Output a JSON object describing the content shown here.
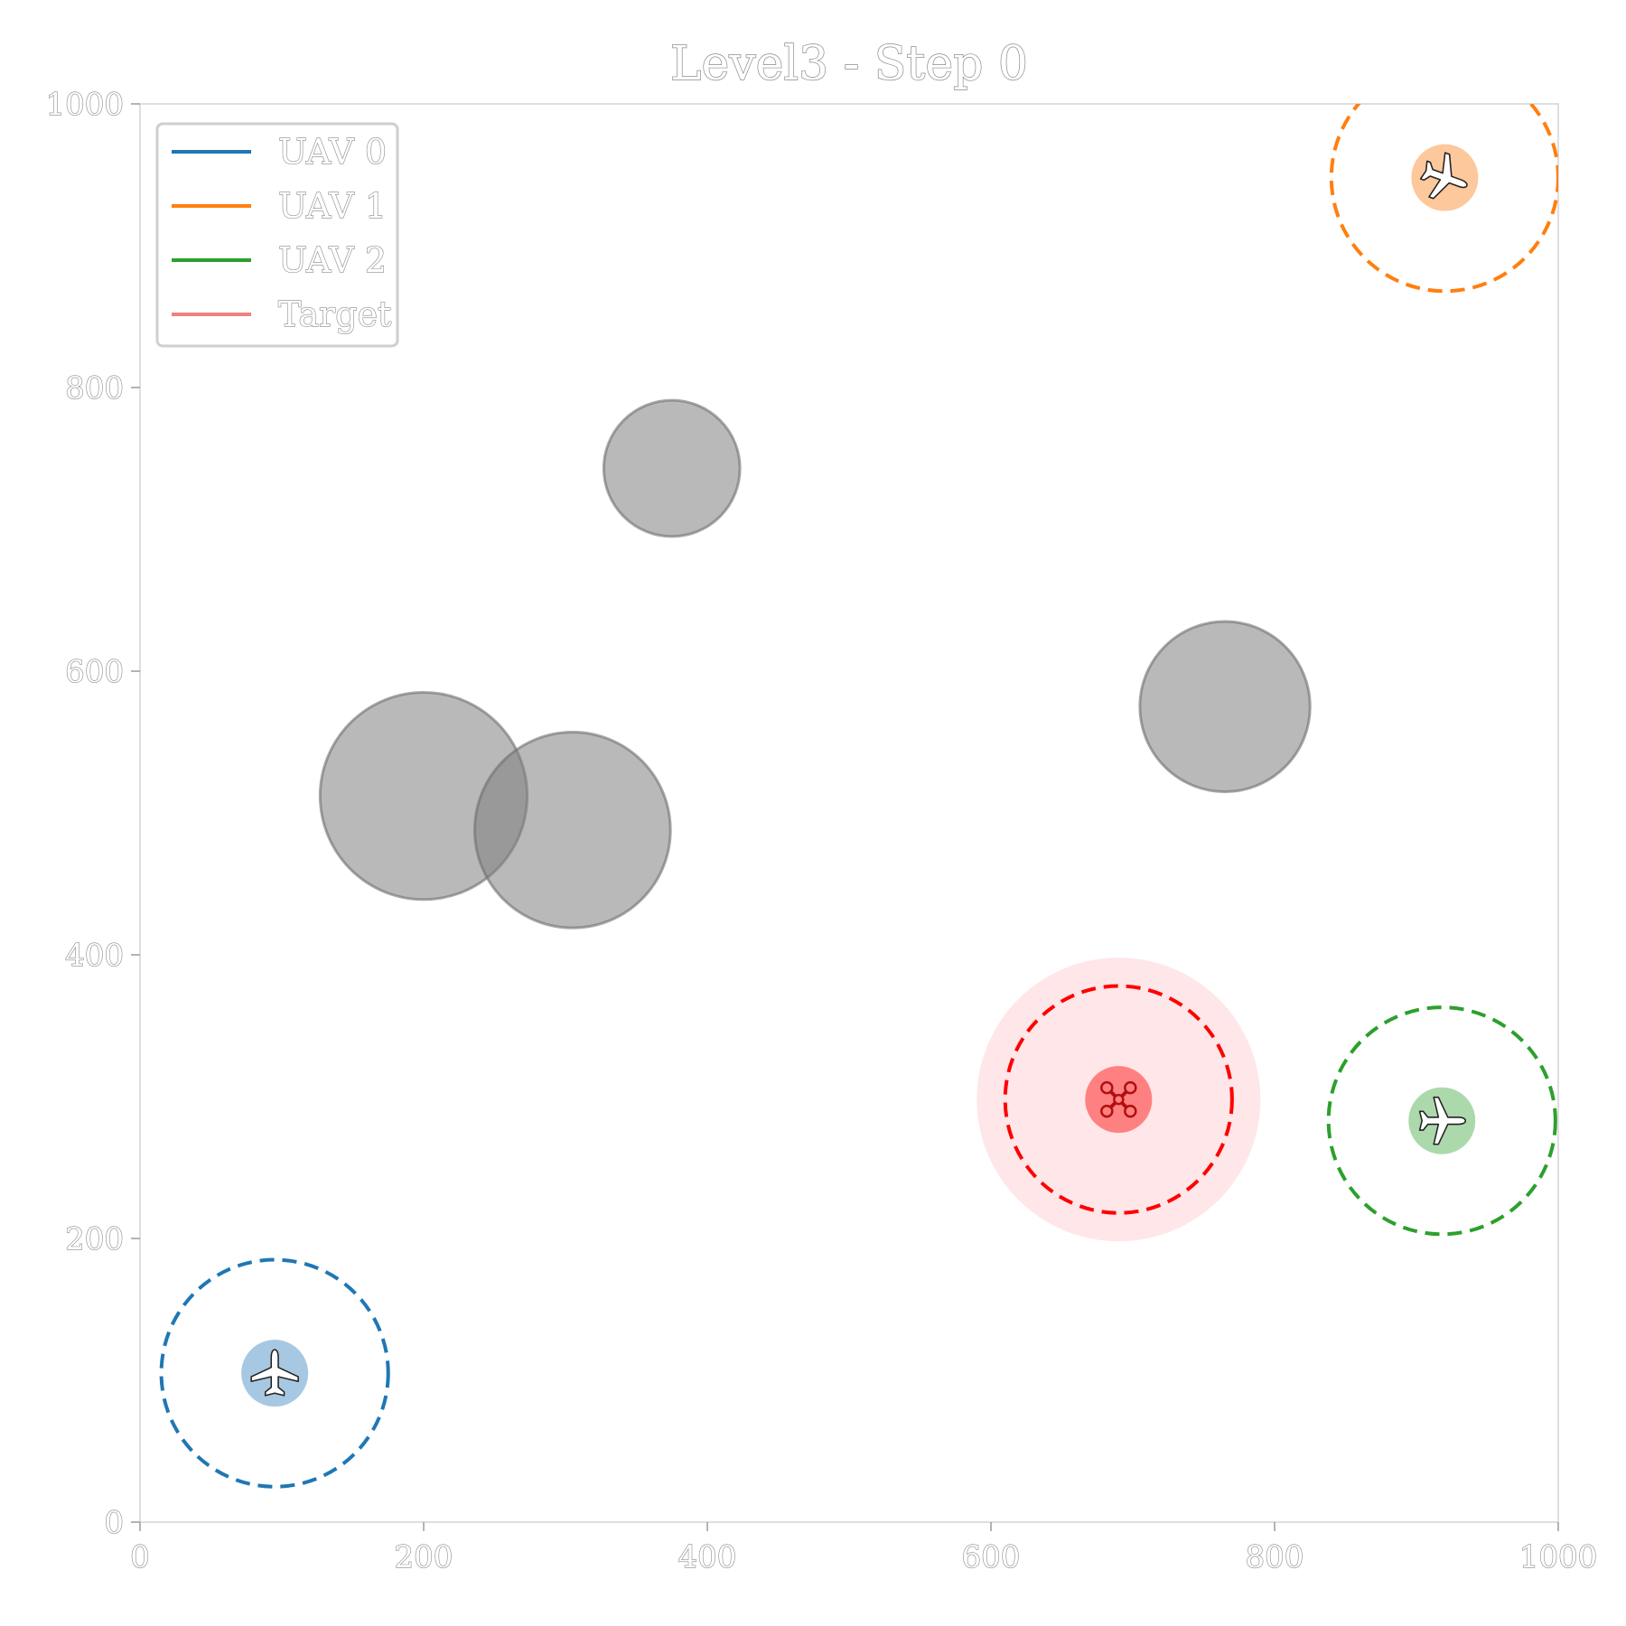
{
  "chart_data": {
    "type": "scatter",
    "title": "Level3 - Step 0",
    "xlim": [
      0,
      1000
    ],
    "ylim": [
      0,
      1000
    ],
    "xticks": [
      "0",
      "200",
      "400",
      "600",
      "800",
      "1000"
    ],
    "yticks": [
      "0",
      "200",
      "400",
      "600",
      "800",
      "1000"
    ],
    "grid": false,
    "legend": {
      "placement": "top-left",
      "entries": [
        {
          "label": "UAV 0",
          "color": "#1f77b4"
        },
        {
          "label": "UAV 1",
          "color": "#ff7f0e"
        },
        {
          "label": "UAV 2",
          "color": "#2ca02c"
        },
        {
          "label": "Target",
          "color": "#f08080"
        }
      ]
    },
    "uavs": [
      {
        "x": 95,
        "y": 105,
        "color": "#1f77b4",
        "marker_color": "#a7c8e2",
        "sensing_radius": 80,
        "icon": "airplane-icon"
      },
      {
        "x": 920,
        "y": 948,
        "color": "#ff7f0e",
        "marker_color": "#fdc89b",
        "sensing_radius": 80,
        "icon": "airplane-icon"
      },
      {
        "x": 918,
        "y": 283,
        "color": "#2ca02c",
        "marker_color": "#acd9ab",
        "sensing_radius": 80,
        "icon": "airplane-icon"
      }
    ],
    "target": {
      "x": 690,
      "y": 298,
      "color": "#ff0000",
      "marker_color": "#ff8080",
      "zone_color": "#ffe6e8",
      "zone_radius": 100,
      "ring_radius": 80,
      "icon": "drone-icon"
    },
    "obstacles": [
      {
        "x": 375,
        "y": 743,
        "r": 48
      },
      {
        "x": 200,
        "y": 512,
        "r": 73
      },
      {
        "x": 305,
        "y": 488,
        "r": 69
      },
      {
        "x": 765,
        "y": 575,
        "r": 60
      }
    ]
  }
}
